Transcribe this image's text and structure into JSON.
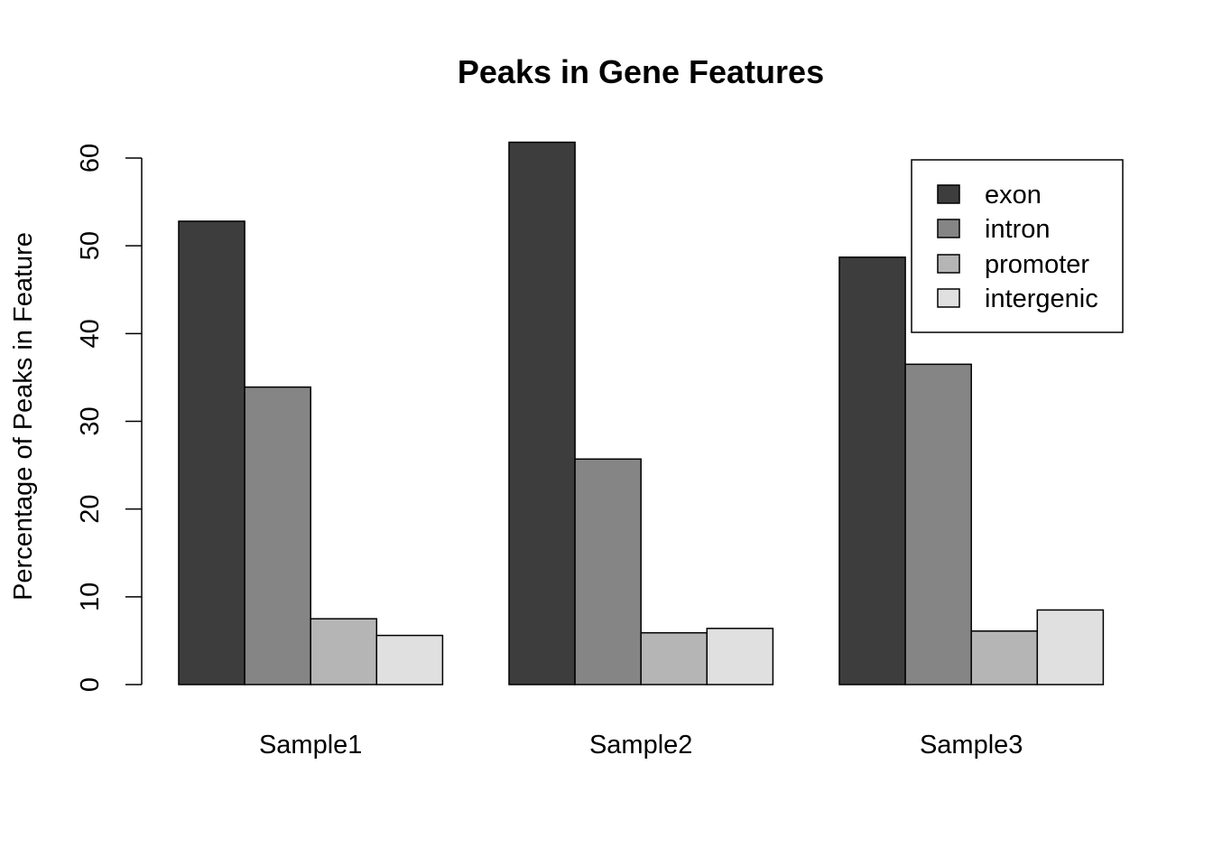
{
  "chart_data": {
    "type": "bar",
    "title": "Peaks in Gene Features",
    "xlabel": "",
    "ylabel": "Percentage of Peaks in Feature",
    "categories": [
      "Sample1",
      "Sample2",
      "Sample3"
    ],
    "series": [
      {
        "name": "exon",
        "color": "#3d3d3d",
        "values": [
          52.8,
          61.8,
          48.7
        ]
      },
      {
        "name": "intron",
        "color": "#858585",
        "values": [
          33.9,
          25.7,
          36.5
        ]
      },
      {
        "name": "promoter",
        "color": "#b5b5b5",
        "values": [
          7.5,
          5.9,
          6.1
        ]
      },
      {
        "name": "intergenic",
        "color": "#e0e0e0",
        "values": [
          5.6,
          6.4,
          8.5
        ]
      }
    ],
    "ylim": [
      0,
      60
    ],
    "yticks": [
      "0",
      "10",
      "20",
      "30",
      "40",
      "50",
      "60"
    ],
    "grid": false,
    "legend_position": "top-right"
  }
}
